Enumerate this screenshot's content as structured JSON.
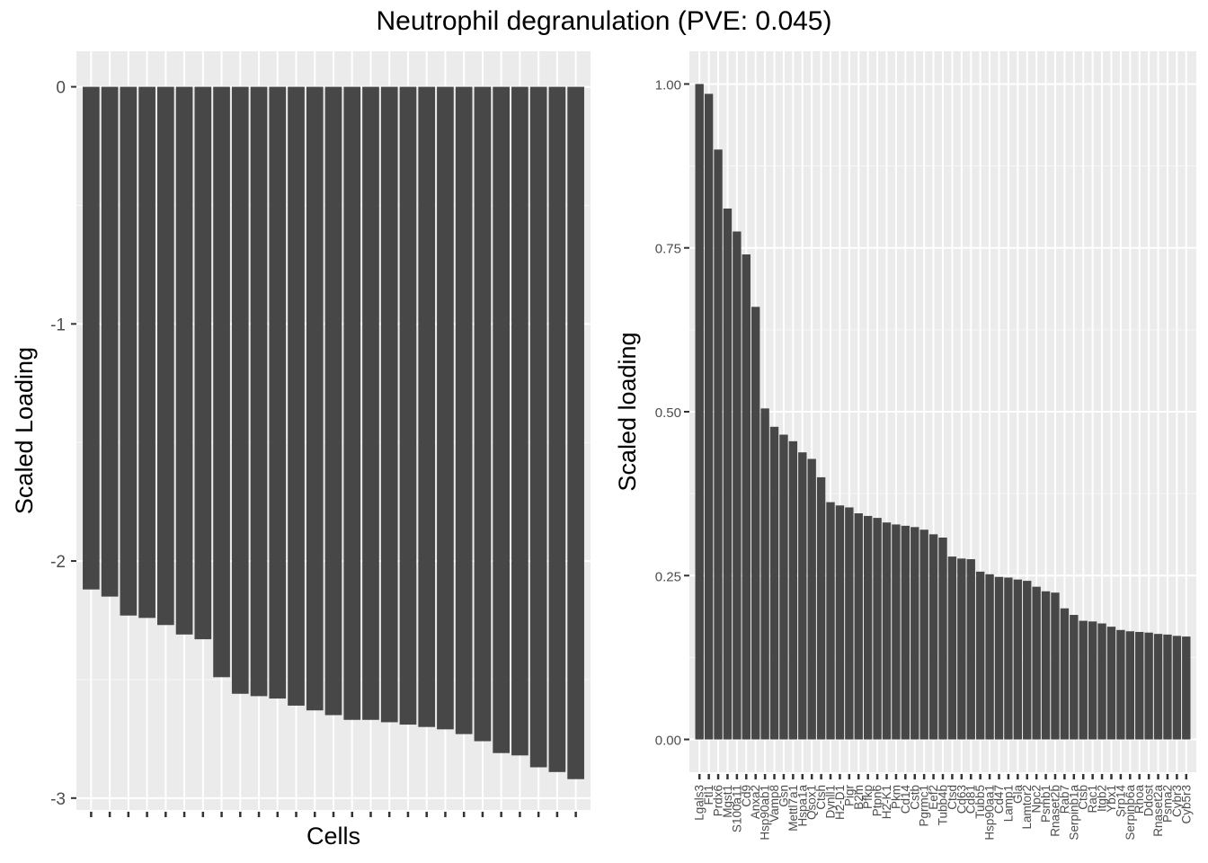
{
  "title": "Neutrophil degranulation (PVE: 0.045)",
  "chart_data": [
    {
      "type": "bar",
      "xlabel": "Cells",
      "ylabel": "Scaled Loading",
      "ylim": [
        -3.05,
        0.15
      ],
      "yticks": [
        0,
        -1,
        -2,
        -3
      ],
      "ytick_labels": [
        "0",
        "-1",
        "-2",
        "-3"
      ],
      "x_tick_labels_shown": false,
      "grid": true,
      "values": [
        -2.12,
        -2.15,
        -2.23,
        -2.24,
        -2.27,
        -2.31,
        -2.33,
        -2.49,
        -2.56,
        -2.57,
        -2.58,
        -2.61,
        -2.63,
        -2.65,
        -2.67,
        -2.67,
        -2.68,
        -2.69,
        -2.7,
        -2.71,
        -2.73,
        -2.76,
        -2.81,
        -2.82,
        -2.87,
        -2.89,
        -2.92
      ]
    },
    {
      "type": "bar",
      "xlabel": "",
      "ylabel": "Scaled loading",
      "ylim": [
        -0.05,
        1.05
      ],
      "yticks": [
        0,
        0.25,
        0.5,
        0.75,
        1.0
      ],
      "ytick_labels": [
        "0.00",
        "0.25",
        "0.50",
        "0.75",
        "1.00"
      ],
      "grid": true,
      "categories": [
        "Lgals3",
        "Ftl1",
        "Prdx6",
        "Mgst1",
        "S100a11",
        "Cd9",
        "Anxa2",
        "Hsp90ab1",
        "Vamp8",
        "Gsn",
        "Mettl7a1",
        "Hspa1a",
        "Qsox1",
        "Ctsh",
        "Dynll1",
        "H2-D1",
        "Pigr",
        "B2m",
        "Pfkp",
        "Ptpn6",
        "H2-K1",
        "Pkm",
        "Cd14",
        "Cstb",
        "Pgrmc1",
        "Eef2",
        "Tubb4b",
        "Ctsd",
        "Cd63",
        "Cd81",
        "Tubb5",
        "Hsp90aa1",
        "Cd47",
        "Lamp1",
        "Gla",
        "Lamtor2",
        "Npc2",
        "Psmb1",
        "Rnaset2b",
        "Rab7",
        "Serpinb1a",
        "Ctsb",
        "Rac1",
        "Itgb2",
        "Ybx1",
        "Srp14",
        "Serpinb6a",
        "Rhoa",
        "Ddost",
        "Rnaset2a",
        "Psma2",
        "Cybr3",
        "Cyb5r3"
      ],
      "values": [
        1.0,
        0.985,
        0.9,
        0.81,
        0.775,
        0.74,
        0.66,
        0.505,
        0.477,
        0.465,
        0.455,
        0.438,
        0.428,
        0.4,
        0.362,
        0.357,
        0.354,
        0.345,
        0.341,
        0.338,
        0.331,
        0.328,
        0.326,
        0.324,
        0.32,
        0.313,
        0.308,
        0.279,
        0.276,
        0.275,
        0.256,
        0.252,
        0.248,
        0.247,
        0.244,
        0.242,
        0.233,
        0.226,
        0.224,
        0.2,
        0.19,
        0.181,
        0.18,
        0.177,
        0.172,
        0.167,
        0.165,
        0.164,
        0.163,
        0.161,
        0.16,
        0.158,
        0.157
      ]
    }
  ]
}
